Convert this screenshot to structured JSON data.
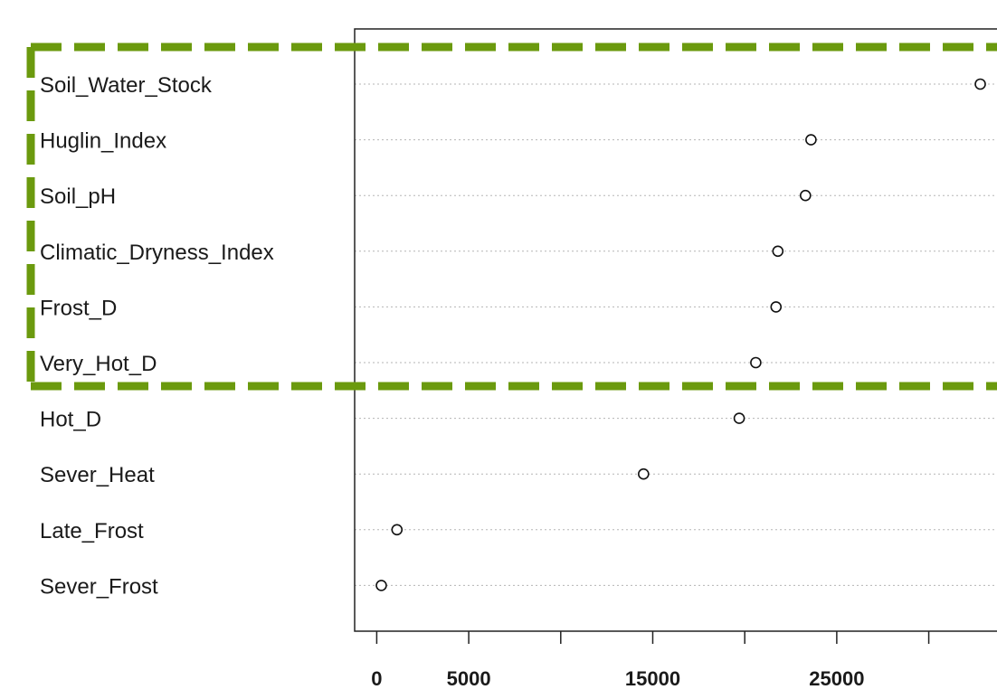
{
  "chart_data": {
    "type": "scatter",
    "title": "",
    "xlabel": "",
    "ylabel": "",
    "categories": [
      "Soil_Water_Stock",
      "Huglin_Index",
      "Soil_pH",
      "Climatic_Dryness_Index",
      "Frost_D",
      "Very_Hot_D",
      "Hot_D",
      "Sever_Heat",
      "Late_Frost",
      "Sever_Frost"
    ],
    "values": [
      32800,
      23600,
      23300,
      21800,
      21700,
      20600,
      19700,
      14500,
      1100,
      250
    ],
    "x_ticks": [
      0,
      5000,
      10000,
      15000,
      20000,
      25000,
      30000
    ],
    "x_tick_labels": [
      "0",
      "5000",
      "",
      "15000",
      "",
      "25000",
      ""
    ],
    "xlim": [
      -1200,
      34200
    ],
    "grid": "dotted horizontal lines per category",
    "highlight": {
      "style": "dashed box",
      "color": "#6b9a0e",
      "categories": [
        "Soil_Water_Stock",
        "Huglin_Index",
        "Soil_pH",
        "Climatic_Dryness_Index",
        "Frost_D",
        "Very_Hot_D"
      ]
    }
  }
}
